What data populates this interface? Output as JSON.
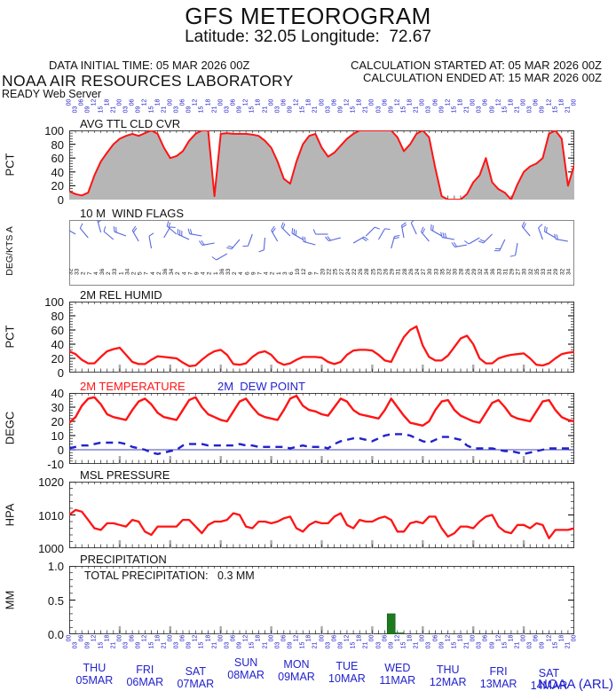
{
  "header": {
    "title": "GFS METEOROGRAM",
    "subtitle": "Latitude: 32.05 Longitude:  72.67",
    "data_initial_time": "DATA INITIAL TIME: 05 MAR 2026 00Z",
    "calc_started": "CALCULATION STARTED AT: 05 MAR 2026 00Z",
    "calc_ended": "CALCULATION ENDED AT: 15 MAR 2026 00Z",
    "org": "NOAA AIR RESOURCES LABORATORY",
    "server": "READY Web Server",
    "credit": "NOAA (ARL)"
  },
  "colors": {
    "red": "#ff1414",
    "blue": "#2222cc",
    "barb_blue": "#5566dd",
    "gray_fill": "#b6b6b6",
    "green": "#1d7a1d",
    "black": "#111111"
  },
  "axis": {
    "hour_labels": [
      "00",
      "03",
      "06",
      "09",
      "12",
      "15",
      "18",
      "21"
    ],
    "hour_step": 3,
    "total_hours": 240,
    "days": [
      {
        "dow": "THU",
        "date": "05MAR"
      },
      {
        "dow": "FRI",
        "date": "06MAR"
      },
      {
        "dow": "SAT",
        "date": "07MAR"
      },
      {
        "dow": "SUN",
        "date": "08MAR"
      },
      {
        "dow": "MON",
        "date": "09MAR"
      },
      {
        "dow": "TUE",
        "date": "10MAR"
      },
      {
        "dow": "WED",
        "date": "11MAR"
      },
      {
        "dow": "THU",
        "date": "12MAR"
      },
      {
        "dow": "FRI",
        "date": "13MAR"
      },
      {
        "dow": "SAT",
        "date": "14MAR"
      }
    ]
  },
  "wind": {
    "dir_numbers": [
      "32",
      "33",
      "2",
      "7",
      "4",
      "36",
      "2",
      "33",
      "1",
      "34",
      "2",
      "5",
      "7",
      "4",
      "2",
      "36",
      "34",
      "2",
      "4",
      "7",
      "9",
      "4",
      "2",
      "1",
      "36",
      "33",
      "2",
      "4",
      "6",
      "9",
      "7",
      "4",
      "2",
      "1",
      "3",
      "6",
      "10",
      "12",
      "9",
      "7",
      "20",
      "22",
      "25",
      "27",
      "24",
      "22",
      "26",
      "28",
      "25",
      "23",
      "26",
      "29",
      "31",
      "28",
      "26",
      "24",
      "27",
      "30",
      "33",
      "35",
      "32",
      "30",
      "28",
      "26",
      "29",
      "32",
      "34",
      "36",
      "33",
      "31",
      "29",
      "27",
      "30",
      "32",
      "35",
      "33",
      "31",
      "29",
      "32",
      "34"
    ],
    "barbs": {
      "angles": [
        300,
        320,
        345,
        310,
        290,
        330,
        350,
        30,
        310,
        295,
        280,
        260,
        240,
        220,
        200,
        185,
        330,
        315,
        300,
        285,
        270,
        255,
        60,
        45,
        30,
        15,
        350,
        335,
        320,
        300,
        280,
        260,
        240,
        225,
        205,
        190,
        320,
        340,
        300,
        280
      ],
      "ticks": [
        2,
        1,
        2,
        1,
        2,
        2,
        1,
        1,
        2,
        3,
        2,
        2,
        1,
        2,
        1,
        1,
        2,
        2,
        3,
        2,
        1,
        2,
        2,
        1,
        1,
        2,
        2,
        1,
        2,
        2,
        3,
        2,
        1,
        2,
        2,
        1,
        2,
        1,
        2,
        2
      ],
      "yoff": [
        16,
        20,
        14,
        22,
        18,
        24,
        32,
        20,
        16,
        22,
        18,
        26,
        38,
        22,
        16,
        20,
        24,
        18,
        22,
        28,
        16,
        20,
        26,
        18,
        22,
        32,
        20,
        16,
        24,
        18,
        22,
        28,
        20,
        16,
        22,
        26,
        18,
        22,
        20,
        24
      ]
    }
  },
  "chart_data": [
    {
      "type": "area",
      "title": "AVG TTL CLD CVR",
      "ylabel": "PCT",
      "ylim": [
        0,
        100
      ],
      "yticks": [
        "0",
        "20",
        "40",
        "60",
        "80",
        "100"
      ],
      "x_start_hour": 0,
      "x_step_hours": 3,
      "values": [
        12,
        8,
        6,
        10,
        35,
        55,
        68,
        80,
        88,
        92,
        95,
        92,
        96,
        100,
        95,
        75,
        60,
        63,
        70,
        85,
        95,
        100,
        100,
        5,
        95,
        96,
        95,
        95,
        95,
        94,
        92,
        85,
        75,
        55,
        30,
        23,
        55,
        80,
        92,
        95,
        75,
        62,
        68,
        78,
        88,
        95,
        100,
        100,
        100,
        100,
        100,
        100,
        90,
        70,
        80,
        95,
        100,
        90,
        45,
        5,
        0,
        0,
        0,
        8,
        25,
        35,
        60,
        25,
        15,
        10,
        0,
        22,
        40,
        48,
        52,
        60,
        95,
        100,
        88,
        20,
        50
      ]
    },
    {
      "type": "wind-barbs",
      "title": "10 M  WIND FLAGS",
      "ylabel": "DEG/KTS A"
    },
    {
      "type": "line",
      "title": "2M REL HUMID",
      "ylabel": "PCT",
      "ylim": [
        0,
        100
      ],
      "yticks": [
        "0",
        "20",
        "40",
        "60",
        "80",
        "100"
      ],
      "x_start_hour": 0,
      "x_step_hours": 3,
      "values": [
        30,
        26,
        18,
        13,
        13,
        22,
        30,
        33,
        35,
        25,
        15,
        12,
        12,
        18,
        23,
        22,
        21,
        20,
        14,
        9,
        10,
        18,
        25,
        30,
        32,
        25,
        12,
        11,
        13,
        22,
        28,
        30,
        25,
        15,
        11,
        13,
        18,
        22,
        22,
        22,
        21,
        15,
        12,
        15,
        25,
        31,
        32,
        32,
        31,
        25,
        17,
        15,
        33,
        50,
        60,
        65,
        38,
        22,
        17,
        17,
        24,
        36,
        48,
        52,
        40,
        20,
        13,
        13,
        20,
        23,
        25,
        26,
        27,
        20,
        11,
        10,
        13,
        20,
        26,
        28,
        29
      ]
    },
    {
      "type": "multiline",
      "title": "2M TEMPERATURE",
      "title2": "2M  DEW POINT",
      "ylabel": "DEGC",
      "ylim": [
        -10,
        40
      ],
      "yticks": [
        "-10",
        "0",
        "10",
        "20",
        "30",
        "40"
      ],
      "zero_line": 0,
      "x_start_hour": 0,
      "x_step_hours": 3,
      "series": [
        {
          "name": "2M TEMPERATURE",
          "style": "solid",
          "values": [
            19,
            23,
            31,
            36,
            37,
            32,
            25,
            23,
            22,
            21,
            28,
            34,
            36,
            32,
            26,
            23,
            22,
            21,
            28,
            35,
            37,
            30,
            25,
            23,
            21,
            20,
            27,
            34,
            36,
            30,
            25,
            23,
            22,
            21,
            28,
            36,
            38,
            31,
            28,
            27,
            25,
            24,
            30,
            36,
            34,
            28,
            25,
            24,
            23,
            22,
            28,
            36,
            30,
            24,
            19,
            18,
            17,
            20,
            28,
            34,
            35,
            28,
            24,
            22,
            20,
            19,
            26,
            33,
            35,
            30,
            24,
            22,
            21,
            20,
            27,
            34,
            35,
            28,
            23,
            21,
            20
          ]
        },
        {
          "name": "2M DEW POINT",
          "style": "dashed",
          "values": [
            1,
            2,
            3,
            3,
            4,
            5,
            5,
            5,
            5,
            4,
            2,
            1,
            0,
            -2,
            -3,
            -2,
            -1,
            0,
            3,
            4,
            4,
            4,
            3,
            3,
            3,
            3,
            3,
            4,
            3,
            3,
            2,
            2,
            2,
            2,
            2,
            1,
            2,
            3,
            2,
            2,
            2,
            1,
            4,
            6,
            7,
            8,
            8,
            7,
            6,
            8,
            10,
            11,
            11,
            11,
            10,
            8,
            6,
            5,
            7,
            9,
            9,
            8,
            7,
            3,
            1,
            1,
            1,
            1,
            0,
            -1,
            -1,
            -2,
            -3,
            -2,
            -1,
            0,
            1,
            1,
            1,
            1,
            1
          ]
        }
      ]
    },
    {
      "type": "line",
      "title": "MSL PRESSURE",
      "ylabel": "HPA",
      "ylim": [
        1000,
        1020
      ],
      "yticks": [
        "1000",
        "1010",
        "1020"
      ],
      "x_start_hour": 0,
      "x_step_hours": 3,
      "values": [
        1010,
        1011.5,
        1011,
        1008.5,
        1006,
        1005.5,
        1007.5,
        1007.5,
        1007,
        1006.5,
        1008.5,
        1008,
        1005,
        1004,
        1006.5,
        1006.5,
        1006.5,
        1006.5,
        1008.5,
        1008.5,
        1006.5,
        1004.5,
        1007,
        1008,
        1008,
        1008.5,
        1010.5,
        1010,
        1006.5,
        1006,
        1008,
        1008,
        1007.5,
        1008,
        1009,
        1009.5,
        1006,
        1005,
        1007,
        1008,
        1007.5,
        1007.5,
        1009.5,
        1010.5,
        1007,
        1006,
        1008.5,
        1008,
        1008,
        1009,
        1009.5,
        1008.5,
        1005,
        1005,
        1007.5,
        1008,
        1007.5,
        1009.5,
        1009.5,
        1006,
        1003.5,
        1004.5,
        1006.5,
        1006.5,
        1006,
        1008,
        1009.5,
        1010,
        1006.5,
        1005,
        1004.5,
        1007,
        1007,
        1006,
        1007.5,
        1007,
        1003,
        1005.5,
        1005.5,
        1005.5,
        1006
      ]
    },
    {
      "type": "bar",
      "title": "PRECIPITATION",
      "annotation": "TOTAL PRECIPITATION:   0.3 MM",
      "ylabel": "MM",
      "ylim": [
        0,
        1
      ],
      "yticks": [
        "0.0",
        "0.5",
        "1.0"
      ],
      "bars": [
        {
          "hour": 153,
          "value": 0.3
        },
        {
          "hour": 157,
          "value": 0.02
        }
      ]
    }
  ]
}
